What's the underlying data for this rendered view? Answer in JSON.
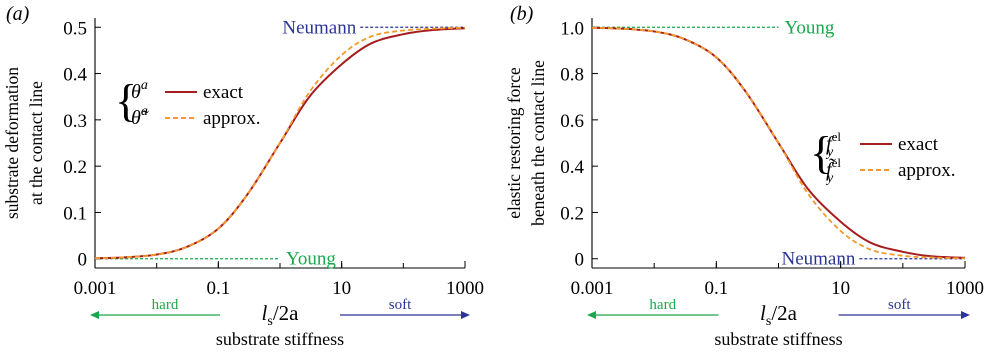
{
  "chart_data": [
    {
      "panel_label": "(a)",
      "type": "line",
      "xlabel_l": "l",
      "xlabel_sub": "s",
      "xlabel_rest": "/2a",
      "ylabel_lines": [
        "substrate deformation",
        "at the contact line"
      ],
      "xscale": "log",
      "xlim": [
        0.001,
        1000
      ],
      "ylim": [
        -0.02,
        0.52
      ],
      "xticks": [
        0.001,
        0.1,
        10,
        1000
      ],
      "xtick_labels": [
        "0.001",
        "0.1",
        "10",
        "1000"
      ],
      "yticks": [
        0,
        0.1,
        0.2,
        0.3,
        0.4,
        0.5
      ],
      "ytick_labels": [
        "0",
        "0.1",
        "0.2",
        "0.3",
        "0.4",
        "0.5"
      ],
      "legend_placement": "upper-left",
      "legend_symbols": [
        "θ",
        "θ̃"
      ],
      "legend_sup": "a",
      "series": [
        {
          "name": "exact",
          "color": "#a51d20",
          "x": [
            0.001,
            0.003,
            0.01,
            0.03,
            0.1,
            0.3,
            1,
            3,
            10,
            30,
            100,
            300,
            1000
          ],
          "y": [
            0.001,
            0.003,
            0.009,
            0.025,
            0.065,
            0.14,
            0.25,
            0.35,
            0.42,
            0.465,
            0.485,
            0.494,
            0.498
          ]
        },
        {
          "name": "approx.",
          "color": "#f39a2b",
          "x": [
            0.001,
            0.003,
            0.01,
            0.03,
            0.1,
            0.3,
            1,
            3,
            10,
            30,
            100,
            300,
            1000
          ],
          "y": [
            0.001,
            0.003,
            0.009,
            0.025,
            0.065,
            0.14,
            0.25,
            0.36,
            0.44,
            0.48,
            0.493,
            0.497,
            0.499
          ]
        }
      ],
      "reference_lines": [
        {
          "label": "Neumann",
          "y": 0.5,
          "x_from": 20,
          "x_to": 1000,
          "label_side": "left",
          "color": "#2b3595"
        },
        {
          "label": "Young",
          "y": 0,
          "x_from": 0.001,
          "x_to": 1,
          "label_side": "right",
          "color": "#1aa84c"
        }
      ],
      "arrow_labels": {
        "hard": "hard",
        "soft": "soft",
        "caption": "substrate stiffness"
      }
    },
    {
      "panel_label": "(b)",
      "type": "line",
      "xlabel_l": "l",
      "xlabel_sub": "s",
      "xlabel_rest": "/2a",
      "ylabel_lines": [
        "elastic restoring force",
        "beneath the contact line"
      ],
      "xscale": "log",
      "xlim": [
        0.001,
        1000
      ],
      "ylim": [
        -0.04,
        1.04
      ],
      "xticks": [
        0.001,
        0.1,
        10,
        1000
      ],
      "xtick_labels": [
        "0.001",
        "0.1",
        "10",
        "1000"
      ],
      "yticks": [
        0,
        0.2,
        0.4,
        0.6,
        0.8,
        1.0
      ],
      "ytick_labels": [
        "0",
        "0.2",
        "0.4",
        "0.6",
        "0.8",
        "1.0"
      ],
      "legend_placement": "right",
      "legend_symbols": [
        "f",
        "f̃"
      ],
      "legend_sup": "el",
      "legend_sub": "y",
      "series": [
        {
          "name": "exact",
          "color": "#a51d20",
          "x": [
            0.001,
            0.003,
            0.01,
            0.03,
            0.1,
            0.3,
            1,
            3,
            10,
            30,
            100,
            300,
            1000
          ],
          "y": [
            0.998,
            0.994,
            0.982,
            0.95,
            0.87,
            0.72,
            0.5,
            0.3,
            0.16,
            0.07,
            0.03,
            0.01,
            0.004
          ]
        },
        {
          "name": "approx.",
          "color": "#f39a2b",
          "x": [
            0.001,
            0.003,
            0.01,
            0.03,
            0.1,
            0.3,
            1,
            3,
            10,
            30,
            100,
            300,
            1000
          ],
          "y": [
            0.998,
            0.994,
            0.982,
            0.95,
            0.87,
            0.72,
            0.5,
            0.28,
            0.12,
            0.04,
            0.013,
            0.005,
            0.002
          ]
        }
      ],
      "reference_lines": [
        {
          "label": "Young",
          "y": 1.0,
          "x_from": 0.001,
          "x_to": 1,
          "label_side": "right",
          "color": "#1aa84c"
        },
        {
          "label": "Neumann",
          "y": 0,
          "x_from": 20,
          "x_to": 1000,
          "label_side": "left",
          "color": "#2b3595"
        }
      ],
      "arrow_labels": {
        "hard": "hard",
        "soft": "soft",
        "caption": "substrate stiffness"
      }
    }
  ],
  "colors": {
    "exact": "#a51d20",
    "approx": "#f39a2b",
    "young": "#1aa84c",
    "neumann": "#2b3595",
    "axis": "#000000"
  }
}
